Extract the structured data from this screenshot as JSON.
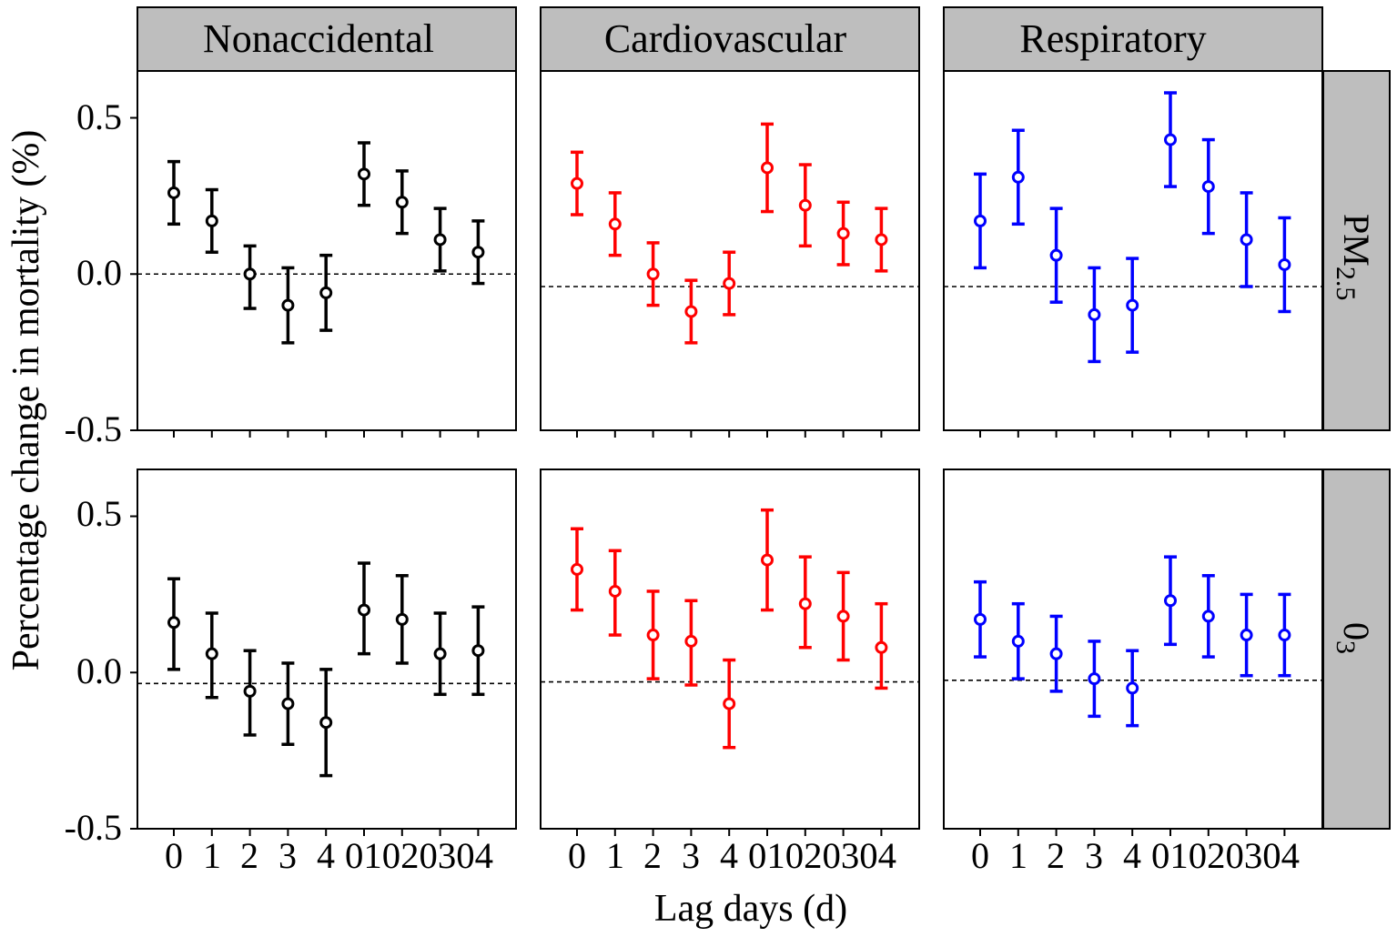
{
  "chart_data": {
    "type": "errorbar",
    "xlabel": "Lag days (d)",
    "ylabel": "Percentage change in mortality (%)",
    "ylim": [
      -0.5,
      0.65
    ],
    "yticks": [
      "0.5",
      "0.0",
      "-0.5"
    ],
    "categories": [
      "0",
      "1",
      "2",
      "3",
      "4",
      "01",
      "02",
      "03",
      "04"
    ],
    "category_display": [
      "0",
      "1",
      "2",
      "3",
      "4",
      "01020304"
    ],
    "columns": [
      {
        "name": "Nonaccidental",
        "color": "#000000"
      },
      {
        "name": "Cardiovascular",
        "color": "#ff0000"
      },
      {
        "name": "Respiratory",
        "color": "#0000ff"
      }
    ],
    "rows": [
      {
        "name_main": "PM",
        "name_sub": "2.5",
        "ref_line": [
          0.0,
          -0.04,
          -0.04
        ]
      },
      {
        "name_main": "0",
        "name_sub": "3",
        "ref_line": [
          -0.035,
          -0.03,
          -0.025
        ]
      }
    ],
    "panels": [
      {
        "row": 0,
        "col": 0,
        "est": [
          0.26,
          0.17,
          0.0,
          -0.1,
          -0.06,
          0.32,
          0.23,
          0.11,
          0.07
        ],
        "lo": [
          0.16,
          0.07,
          -0.11,
          -0.22,
          -0.18,
          0.22,
          0.13,
          0.01,
          -0.03
        ],
        "hi": [
          0.36,
          0.27,
          0.09,
          0.02,
          0.06,
          0.42,
          0.33,
          0.21,
          0.17
        ]
      },
      {
        "row": 0,
        "col": 1,
        "est": [
          0.29,
          0.16,
          0.0,
          -0.12,
          -0.03,
          0.34,
          0.22,
          0.13,
          0.11
        ],
        "lo": [
          0.19,
          0.06,
          -0.1,
          -0.22,
          -0.13,
          0.2,
          0.09,
          0.03,
          0.01
        ],
        "hi": [
          0.39,
          0.26,
          0.1,
          -0.02,
          0.07,
          0.48,
          0.35,
          0.23,
          0.21
        ]
      },
      {
        "row": 0,
        "col": 2,
        "est": [
          0.17,
          0.31,
          0.06,
          -0.13,
          -0.1,
          0.43,
          0.28,
          0.11,
          0.03
        ],
        "lo": [
          0.02,
          0.16,
          -0.09,
          -0.28,
          -0.25,
          0.28,
          0.13,
          -0.04,
          -0.12
        ],
        "hi": [
          0.32,
          0.46,
          0.21,
          0.02,
          0.05,
          0.58,
          0.43,
          0.26,
          0.18
        ]
      },
      {
        "row": 1,
        "col": 0,
        "est": [
          0.16,
          0.06,
          -0.06,
          -0.1,
          -0.16,
          0.2,
          0.17,
          0.06,
          0.07
        ],
        "lo": [
          0.01,
          -0.08,
          -0.2,
          -0.23,
          -0.33,
          0.06,
          0.03,
          -0.07,
          -0.07
        ],
        "hi": [
          0.3,
          0.19,
          0.07,
          0.03,
          0.01,
          0.35,
          0.31,
          0.19,
          0.21
        ]
      },
      {
        "row": 1,
        "col": 1,
        "est": [
          0.33,
          0.26,
          0.12,
          0.1,
          -0.1,
          0.36,
          0.22,
          0.18,
          0.08
        ],
        "lo": [
          0.2,
          0.12,
          -0.02,
          -0.04,
          -0.24,
          0.2,
          0.08,
          0.04,
          -0.05
        ],
        "hi": [
          0.46,
          0.39,
          0.26,
          0.23,
          0.04,
          0.52,
          0.37,
          0.32,
          0.22
        ]
      },
      {
        "row": 1,
        "col": 2,
        "est": [
          0.17,
          0.1,
          0.06,
          -0.02,
          -0.05,
          0.23,
          0.18,
          0.12,
          0.12
        ],
        "lo": [
          0.05,
          -0.02,
          -0.06,
          -0.14,
          -0.17,
          0.09,
          0.05,
          -0.01,
          -0.01
        ],
        "hi": [
          0.29,
          0.22,
          0.18,
          0.1,
          0.07,
          0.37,
          0.31,
          0.25,
          0.25
        ]
      }
    ]
  }
}
